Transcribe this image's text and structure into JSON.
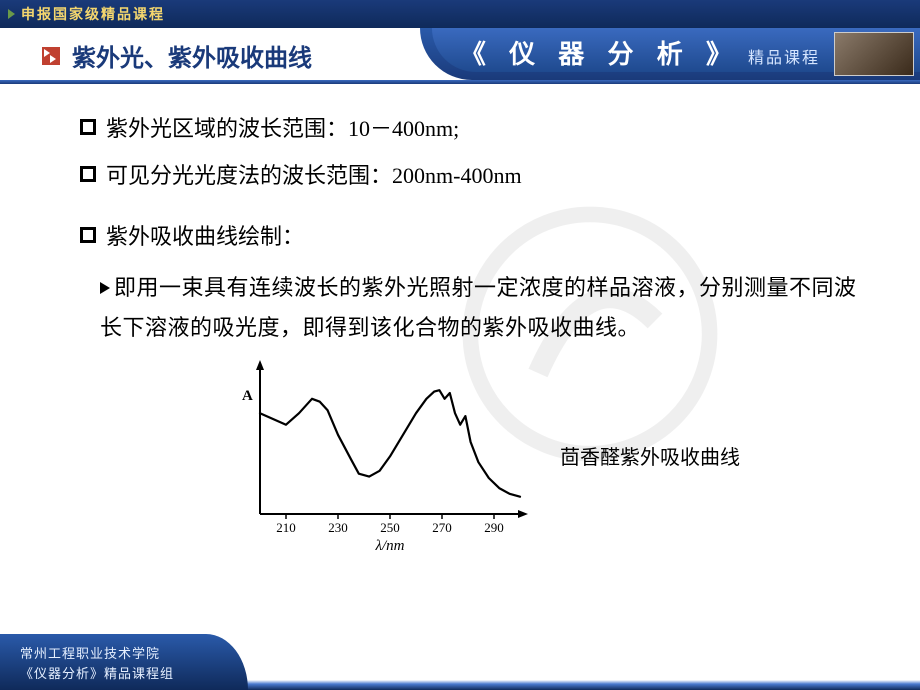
{
  "top_strip": {
    "text": "申报国家级精品课程"
  },
  "header": {
    "section_title": "紫外光、紫外吸收曲线",
    "course_name": "《 仪 器 分 析 》",
    "course_sub": "精品课程"
  },
  "content": {
    "bullet1": "紫外光区域的波长范围：10－400nm;",
    "bullet2": "可见分光光度法的波长范围：200nm-400nm",
    "bullet3": "紫外吸收曲线绘制：",
    "paragraph": "即用一束具有连续波长的紫外光照射一定浓度的样品溶液，分别测量不同波长下溶液的吸光度，即得到该化合物的紫外吸收曲线。",
    "figure_caption": "茴香醛紫外吸收曲线"
  },
  "chart": {
    "type": "line",
    "x_label": "λ/nm",
    "y_label": "A",
    "x_ticks": [
      210,
      230,
      250,
      270,
      290
    ],
    "x_range": [
      200,
      300
    ],
    "y_range": [
      0,
      1.0
    ],
    "line_color": "#000000",
    "line_width": 2.2,
    "axis_color": "#000000",
    "tick_fontsize": 13,
    "label_fontsize": 15,
    "points": [
      [
        200,
        0.7
      ],
      [
        205,
        0.66
      ],
      [
        210,
        0.62
      ],
      [
        215,
        0.7
      ],
      [
        220,
        0.8
      ],
      [
        223,
        0.78
      ],
      [
        226,
        0.72
      ],
      [
        230,
        0.55
      ],
      [
        235,
        0.38
      ],
      [
        238,
        0.28
      ],
      [
        242,
        0.26
      ],
      [
        246,
        0.3
      ],
      [
        250,
        0.4
      ],
      [
        255,
        0.55
      ],
      [
        260,
        0.7
      ],
      [
        264,
        0.8
      ],
      [
        267,
        0.85
      ],
      [
        269,
        0.86
      ],
      [
        271,
        0.8
      ],
      [
        273,
        0.84
      ],
      [
        275,
        0.7
      ],
      [
        277,
        0.62
      ],
      [
        279,
        0.68
      ],
      [
        281,
        0.5
      ],
      [
        284,
        0.36
      ],
      [
        288,
        0.25
      ],
      [
        292,
        0.18
      ],
      [
        296,
        0.14
      ],
      [
        300,
        0.12
      ]
    ]
  },
  "footer": {
    "line1": "常州工程职业技术学院",
    "line2": "《仪器分析》精品课程组"
  }
}
